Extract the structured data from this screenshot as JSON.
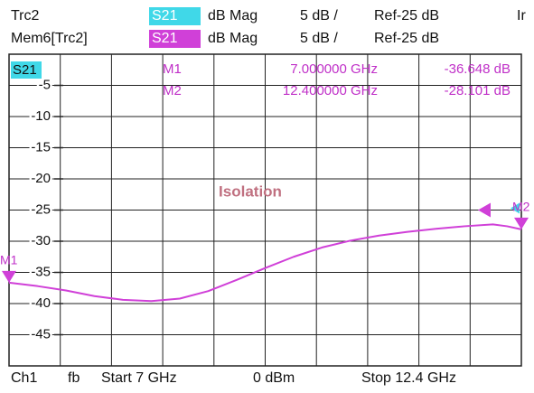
{
  "header": {
    "rows": [
      {
        "trace": "Trc2",
        "param": "S21",
        "format": "dB Mag",
        "scale": "5 dB /",
        "ref": "Ref-25 dB",
        "extra": "Ir"
      },
      {
        "trace": "Mem6[Trc2]",
        "param": "S21",
        "format": "dB Mag",
        "scale": "5 dB /",
        "ref": "Ref-25 dB"
      }
    ]
  },
  "chart_data": {
    "type": "line",
    "trace_label": "S21",
    "annotation": "Isolation",
    "x": [
      7.0,
      7.3,
      7.6,
      7.9,
      8.2,
      8.5,
      8.8,
      9.1,
      9.4,
      9.7,
      10.0,
      10.3,
      10.6,
      10.9,
      11.2,
      11.5,
      11.8,
      12.1,
      12.25,
      12.4
    ],
    "series": [
      {
        "color": "#d040d8",
        "values": [
          -36.648,
          -37.2,
          -37.9,
          -38.8,
          -39.4,
          -39.6,
          -39.2,
          -38.0,
          -36.2,
          -34.3,
          -32.5,
          -31.0,
          -29.9,
          -29.1,
          -28.5,
          -28.0,
          -27.6,
          -27.3,
          -27.6,
          -28.101
        ]
      }
    ],
    "xlim": [
      7,
      12.4
    ],
    "ylim": [
      -50,
      0
    ],
    "yticks": [
      -45,
      -40,
      -35,
      -30,
      -25,
      -20,
      -15,
      -10,
      -5
    ],
    "grid": true,
    "ref_level": -25,
    "markers": [
      {
        "name": "M1",
        "x": 7.0,
        "y": -36.648,
        "x_label": "7.000000 GHz",
        "y_label": "-36.648 dB"
      },
      {
        "name": "M2",
        "x": 12.4,
        "y": -28.101,
        "x_label": "12.400000 GHz",
        "y_label": "-28.101 dB"
      }
    ]
  },
  "footer": {
    "channel": "Ch1",
    "mode": "fb",
    "start": "Start 7 GHz",
    "power": "0 dBm",
    "stop": "Stop 12.4 GHz"
  }
}
